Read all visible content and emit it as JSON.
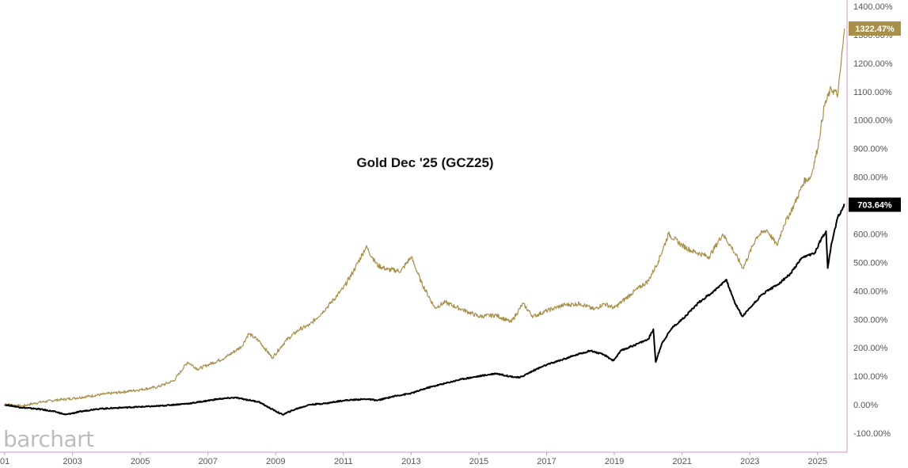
{
  "chart_data": {
    "type": "line",
    "title": "Gold Dec '25 (GCZ25)",
    "watermark": "barchart",
    "xlim": [
      2001.0,
      2025.8
    ],
    "ylim": [
      -145,
      1410
    ],
    "x_ticks": [
      "01",
      "2003",
      "2005",
      "2007",
      "2009",
      "2011",
      "2013",
      "2015",
      "2017",
      "2019",
      "2021",
      "2023",
      "2025"
    ],
    "y_ticks": [
      "1400.00%",
      "1300.00%",
      "1200.00%",
      "1100.00%",
      "1000.00%",
      "900.00%",
      "800.00%",
      "700.00%",
      "600.00%",
      "500.00%",
      "400.00%",
      "300.00%",
      "200.00%",
      "100.00%",
      "0.00%",
      "-100.00%"
    ],
    "grid": false,
    "series": [
      {
        "color": "#a8904a",
        "last_label": "1322.47%",
        "label_color": "#a8904a",
        "x": [
          2001.0,
          2001.5,
          2002.0,
          2002.5,
          2003.0,
          2003.5,
          2004.0,
          2004.5,
          2005.0,
          2005.5,
          2006.0,
          2006.4,
          2006.7,
          2007.0,
          2007.5,
          2008.0,
          2008.2,
          2008.5,
          2008.9,
          2009.3,
          2009.7,
          2010.0,
          2010.5,
          2011.0,
          2011.3,
          2011.67,
          2012.0,
          2012.3,
          2012.7,
          2013.0,
          2013.3,
          2013.7,
          2014.0,
          2014.5,
          2015.0,
          2015.5,
          2015.95,
          2016.3,
          2016.6,
          2017.0,
          2017.5,
          2018.0,
          2018.4,
          2018.7,
          2019.0,
          2019.5,
          2020.0,
          2020.3,
          2020.6,
          2021.0,
          2021.3,
          2021.8,
          2022.2,
          2022.5,
          2022.8,
          2023.2,
          2023.5,
          2023.8,
          2024.0,
          2024.3,
          2024.6,
          2024.8,
          2025.0,
          2025.2,
          2025.4,
          2025.6,
          2025.8
        ],
        "values": [
          3,
          -5,
          8,
          16,
          22,
          30,
          38,
          45,
          53,
          62,
          85,
          150,
          125,
          140,
          165,
          205,
          250,
          225,
          165,
          225,
          265,
          280,
          340,
          410,
          470,
          555,
          490,
          475,
          470,
          520,
          430,
          340,
          360,
          335,
          310,
          315,
          290,
          355,
          310,
          330,
          350,
          355,
          335,
          355,
          340,
          390,
          435,
          505,
          600,
          560,
          540,
          520,
          600,
          545,
          480,
          590,
          615,
          560,
          630,
          700,
          785,
          800,
          900,
          1050,
          1110,
          1090,
          1322
        ]
      },
      {
        "color": "#000000",
        "last_label": "703.64%",
        "label_color": "#000000",
        "x": [
          2001.0,
          2001.5,
          2002.0,
          2002.5,
          2002.8,
          2003.2,
          2003.7,
          2004.5,
          2005.5,
          2006.5,
          2007.3,
          2007.8,
          2008.5,
          2008.8,
          2009.2,
          2009.6,
          2010.0,
          2010.5,
          2011.0,
          2011.7,
          2012.0,
          2012.5,
          2013.0,
          2013.5,
          2014.0,
          2014.5,
          2015.0,
          2015.5,
          2015.9,
          2016.2,
          2016.7,
          2017.0,
          2017.5,
          2018.0,
          2018.3,
          2018.7,
          2018.97,
          2019.2,
          2019.7,
          2020.0,
          2020.15,
          2020.22,
          2020.4,
          2020.7,
          2021.0,
          2021.5,
          2021.95,
          2022.3,
          2022.55,
          2022.78,
          2023.0,
          2023.3,
          2023.5,
          2023.8,
          2024.2,
          2024.5,
          2024.7,
          2024.9,
          2025.1,
          2025.25,
          2025.3,
          2025.4,
          2025.6,
          2025.8
        ],
        "values": [
          0,
          -10,
          -15,
          -25,
          -35,
          -25,
          -15,
          -10,
          -5,
          5,
          20,
          25,
          10,
          -10,
          -35,
          -15,
          0,
          5,
          15,
          20,
          15,
          30,
          40,
          60,
          75,
          90,
          100,
          110,
          100,
          95,
          125,
          140,
          160,
          180,
          190,
          175,
          155,
          190,
          215,
          230,
          265,
          150,
          215,
          270,
          300,
          360,
          400,
          440,
          360,
          310,
          340,
          380,
          400,
          420,
          460,
          510,
          525,
          530,
          580,
          610,
          480,
          560,
          660,
          703
        ]
      }
    ]
  }
}
